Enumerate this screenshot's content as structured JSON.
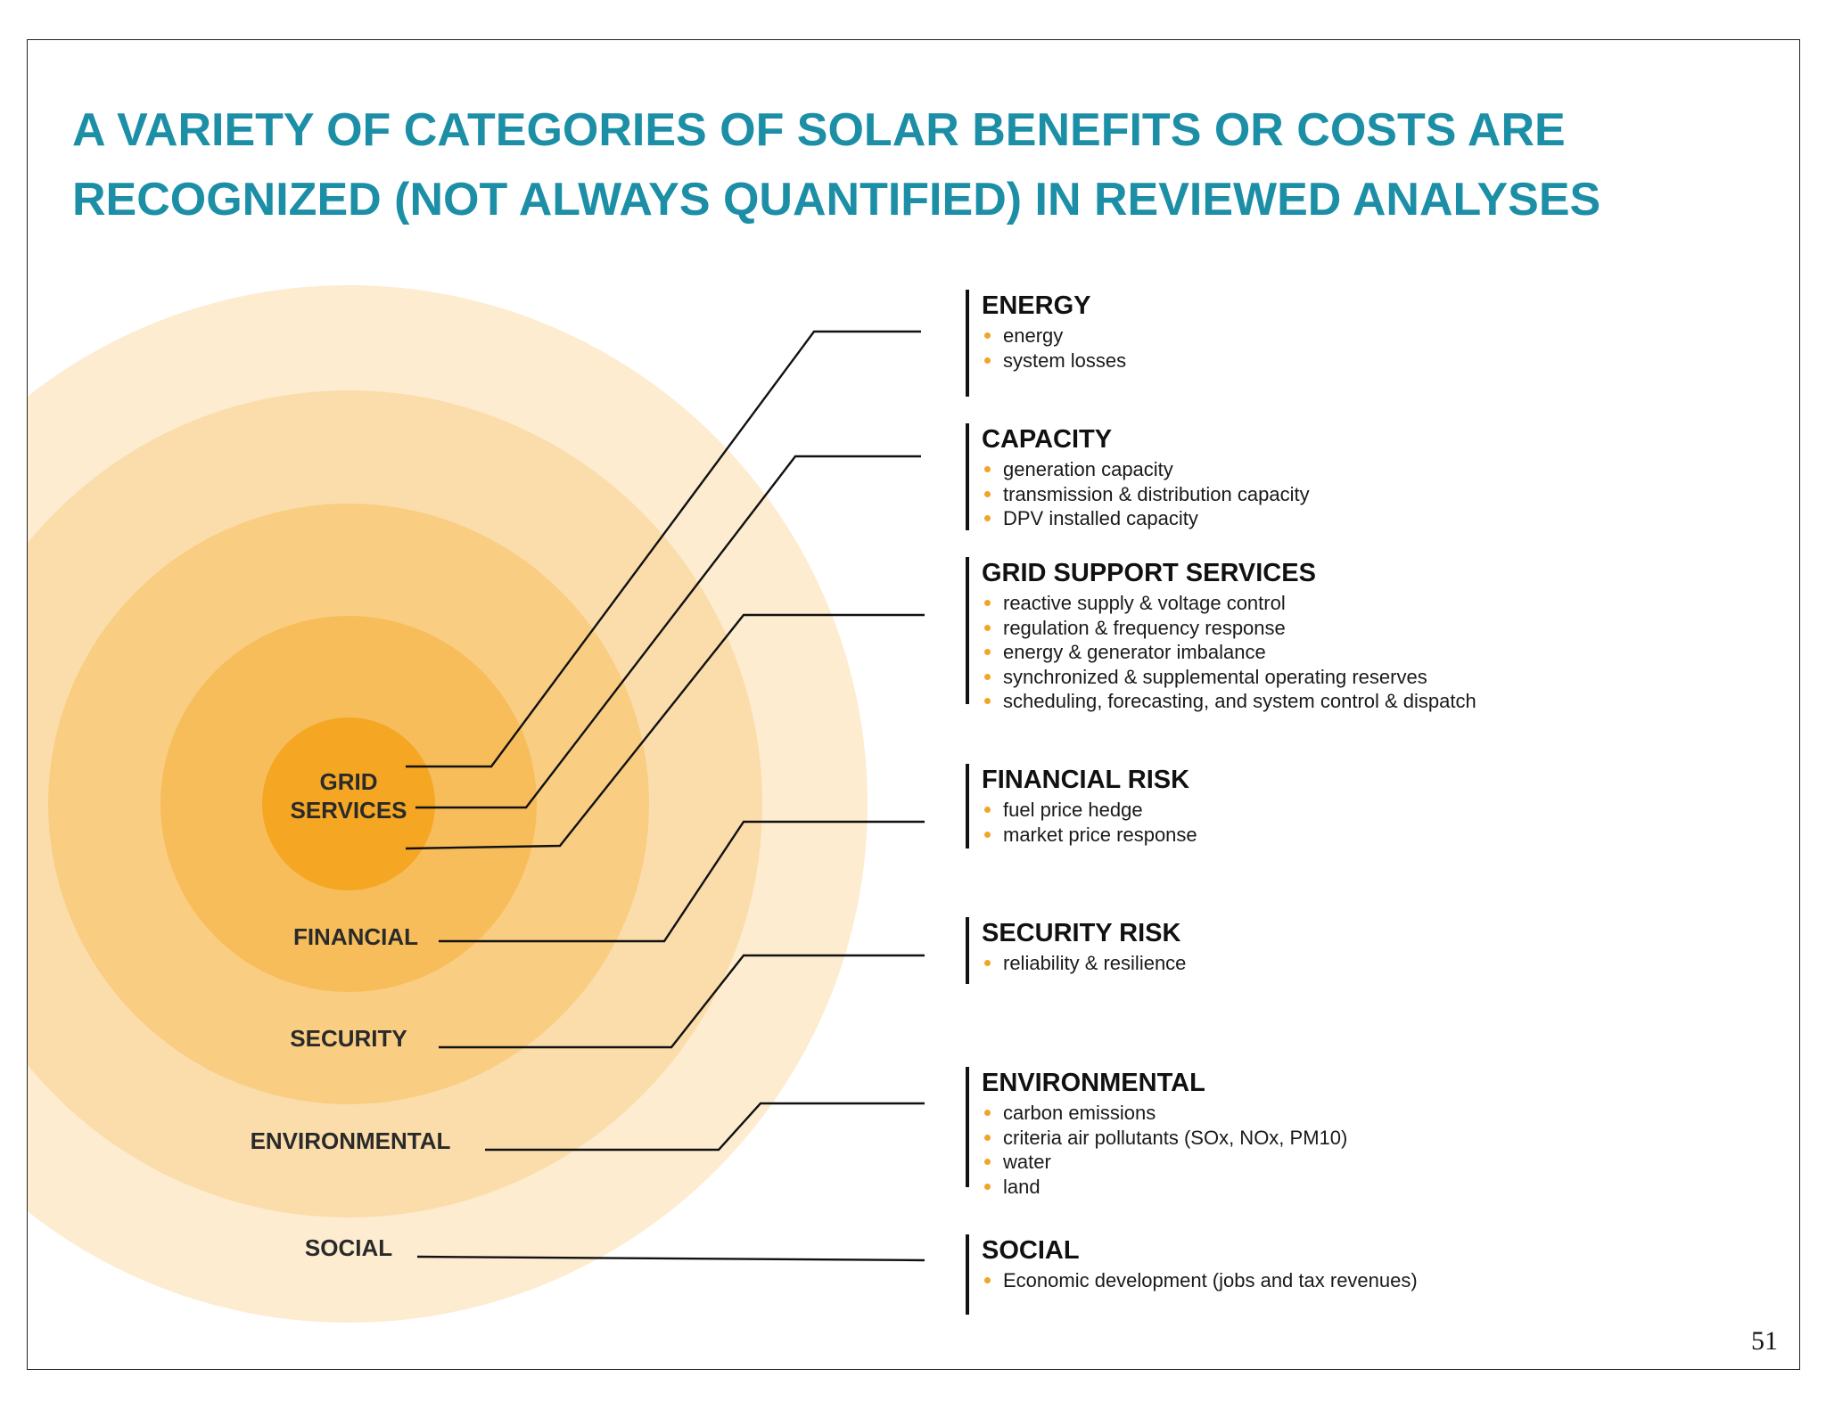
{
  "title": {
    "line1": "A VARIETY OF CATEGORIES OF SOLAR BENEFITS OR COSTS ARE",
    "line2": "RECOGNIZED (NOT ALWAYS QUANTIFIED) IN REVIEWED ANALYSES"
  },
  "rings": {
    "grid_services": {
      "line1": "GRID",
      "line2": "SERVICES"
    },
    "financial": "FINANCIAL",
    "security": "SECURITY",
    "environmental": "ENVIRONMENTAL",
    "social": "SOCIAL"
  },
  "colors": {
    "title": "#1c8fa6",
    "ring_outer": "#fdecd0",
    "ring_4": "#fbddab",
    "ring_3": "#f9cd82",
    "ring_2": "#f7bd5a",
    "ring_core": "#f5a623",
    "bullet": "#f2a428"
  },
  "categories": [
    {
      "heading": "ENERGY",
      "items": [
        "energy",
        "system losses"
      ]
    },
    {
      "heading": "CAPACITY",
      "items": [
        "generation capacity",
        "transmission & distribution capacity",
        "DPV installed capacity"
      ]
    },
    {
      "heading": "GRID SUPPORT SERVICES",
      "items": [
        "reactive supply & voltage control",
        "regulation & frequency response",
        "energy & generator imbalance",
        "synchronized & supplemental operating reserves",
        "scheduling, forecasting, and system control & dispatch"
      ]
    },
    {
      "heading": "FINANCIAL RISK",
      "items": [
        "fuel price hedge",
        "market price response"
      ]
    },
    {
      "heading": "SECURITY RISK",
      "items": [
        "reliability & resilience"
      ]
    },
    {
      "heading": "ENVIRONMENTAL",
      "items": [
        "carbon emissions",
        "criteria air pollutants (SOx, NOx, PM10)",
        "water",
        "land"
      ]
    },
    {
      "heading": "SOCIAL",
      "items": [
        "Economic development (jobs and tax revenues)"
      ]
    }
  ],
  "page_number": "51"
}
